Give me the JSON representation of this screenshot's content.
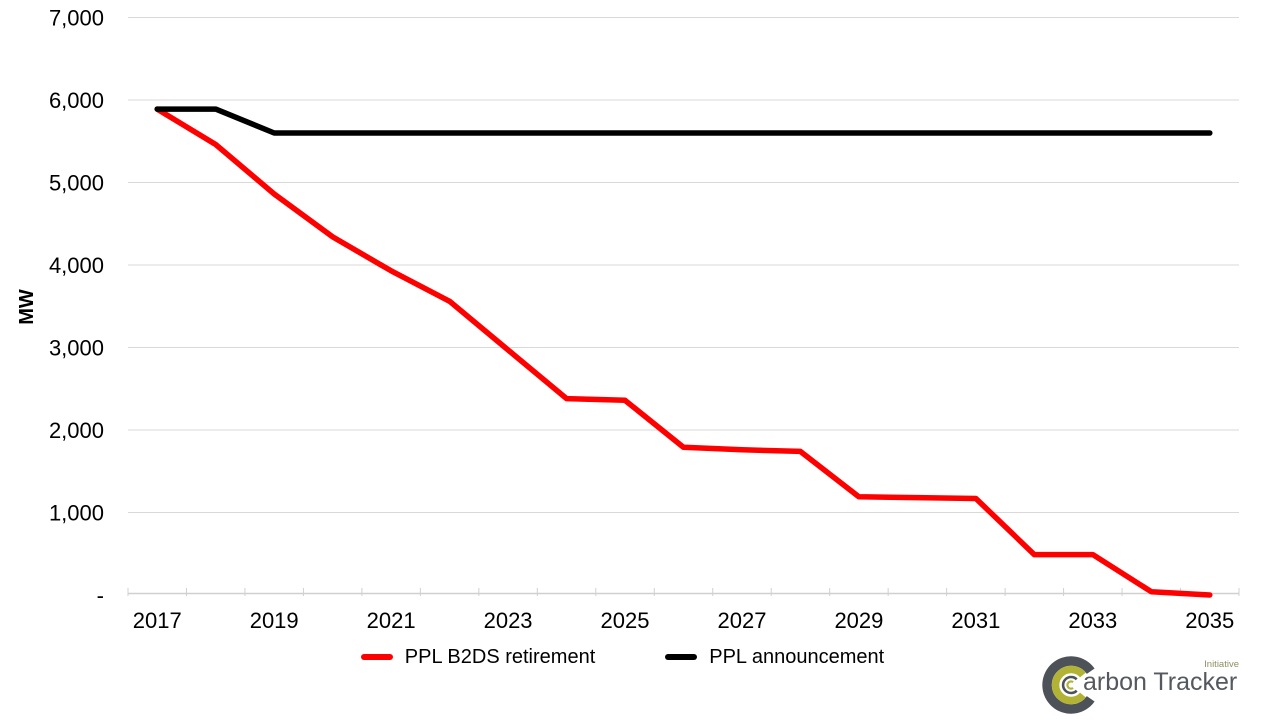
{
  "chart_data": {
    "type": "line",
    "title": "",
    "xlabel": "",
    "ylabel": "MW",
    "x": [
      2017,
      2018,
      2019,
      2020,
      2021,
      2022,
      2023,
      2024,
      2025,
      2026,
      2027,
      2028,
      2029,
      2030,
      2031,
      2032,
      2033,
      2034,
      2035
    ],
    "x_label_every": 2,
    "y_axis": {
      "min": 0,
      "max": 7000,
      "step": 1000,
      "ticks": [
        {
          "value": 7000,
          "label": "7,000"
        },
        {
          "value": 6000,
          "label": "6,000"
        },
        {
          "value": 5000,
          "label": "5,000"
        },
        {
          "value": 4000,
          "label": "4,000"
        },
        {
          "value": 3000,
          "label": "3,000"
        },
        {
          "value": 2000,
          "label": "2,000"
        },
        {
          "value": 1000,
          "label": "1,000"
        },
        {
          "value": 0,
          "label": "-"
        }
      ]
    },
    "series": [
      {
        "name": "PPL B2DS retirement",
        "color": "#FF0000",
        "values": [
          5890,
          5460,
          4860,
          4340,
          3930,
          3560,
          2970,
          2380,
          2360,
          1790,
          1760,
          1740,
          1190,
          1180,
          1170,
          490,
          490,
          40,
          0
        ]
      },
      {
        "name": "PPL announcement",
        "color": "#000000",
        "values": [
          5890,
          5890,
          5600,
          5600,
          5600,
          5600,
          5600,
          5600,
          5600,
          5600,
          5600,
          5600,
          5600,
          5600,
          5600,
          5600,
          5600,
          5600,
          5600
        ]
      }
    ],
    "grid": "horizontal",
    "legend_position": "bottom",
    "style": {
      "gridline_color": "#D9D9D9",
      "axis_color": "#D0D0D0",
      "text_color": "#000000",
      "line_width": 5.5
    }
  },
  "logo": {
    "wordmark": "arbon Tracker",
    "tagline": "Initiative",
    "gray": "#4d5158",
    "olive": "#b2b335"
  }
}
